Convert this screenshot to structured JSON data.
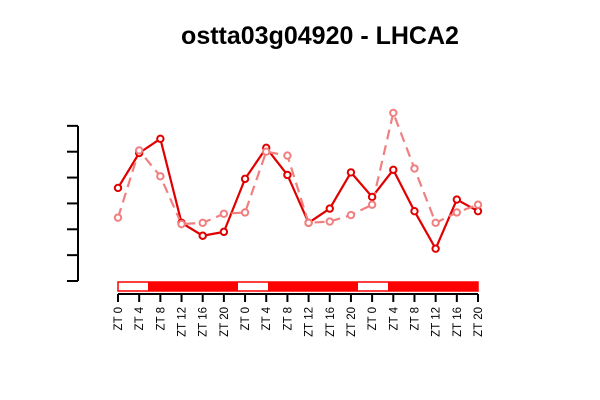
{
  "chart_data": {
    "type": "line",
    "title": "ostta03g04920 - LHCA2",
    "xlabel": "",
    "ylabel": "",
    "categories": [
      "ZT 0",
      "ZT 4",
      "ZT 8",
      "ZT 12",
      "ZT 16",
      "ZT 20",
      "ZT 0",
      "ZT 4",
      "ZT 8",
      "ZT 12",
      "ZT 16",
      "ZT 20",
      "ZT 0",
      "ZT 4",
      "ZT 8",
      "ZT 12",
      "ZT 16",
      "ZT 20"
    ],
    "series": [
      {
        "style": "solid",
        "color": "#e00000",
        "values": [
          3.6,
          4.95,
          5.5,
          2.25,
          1.75,
          1.9,
          3.95,
          5.15,
          4.1,
          2.25,
          2.8,
          4.2,
          3.25,
          4.3,
          2.7,
          1.25,
          3.15,
          2.7
        ]
      },
      {
        "style": "dashed",
        "color": "#f08080",
        "values": [
          2.45,
          5.05,
          4.05,
          2.2,
          2.25,
          2.6,
          2.65,
          5.0,
          4.85,
          2.25,
          2.3,
          2.55,
          2.95,
          6.5,
          4.35,
          2.25,
          2.65,
          2.95
        ]
      }
    ],
    "ylim": [
      0,
      7
    ],
    "y_ticks": [
      0,
      1,
      2,
      3,
      4,
      5,
      6
    ],
    "y_tick_labels_shown": false,
    "grid": false,
    "light_dark_bar": [
      "light",
      "dark",
      "dark",
      "dark",
      "light",
      "dark",
      "dark",
      "dark",
      "light",
      "dark",
      "dark",
      "dark"
    ],
    "colors": {
      "solid_series": "#e00000",
      "dashed_series": "#f08080",
      "bar_fill": "#ff0000"
    }
  }
}
